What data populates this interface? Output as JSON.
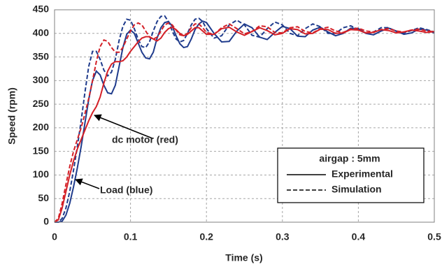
{
  "chart_data": {
    "type": "line",
    "xlabel": "Time  (s)",
    "ylabel": "Speed  (rpm)",
    "x": [
      0,
      0.005,
      0.01,
      0.015,
      0.02,
      0.025,
      0.03,
      0.035,
      0.04,
      0.045,
      0.05,
      0.055,
      0.06,
      0.065,
      0.07,
      0.075,
      0.08,
      0.085,
      0.09,
      0.095,
      0.1,
      0.105,
      0.11,
      0.115,
      0.12,
      0.125,
      0.13,
      0.135,
      0.14,
      0.145,
      0.15,
      0.155,
      0.16,
      0.165,
      0.17,
      0.175,
      0.18,
      0.185,
      0.19,
      0.195,
      0.2,
      0.21,
      0.22,
      0.23,
      0.24,
      0.25,
      0.26,
      0.27,
      0.28,
      0.29,
      0.3,
      0.31,
      0.32,
      0.33,
      0.34,
      0.35,
      0.36,
      0.37,
      0.38,
      0.39,
      0.4,
      0.41,
      0.42,
      0.43,
      0.44,
      0.45,
      0.46,
      0.47,
      0.48,
      0.49,
      0.5
    ],
    "series": [
      {
        "color": "#1f3b8c",
        "dash": "solid",
        "values": [
          0,
          0,
          2,
          15,
          40,
          75,
          115,
          160,
          210,
          260,
          300,
          320,
          312,
          290,
          274,
          272,
          290,
          330,
          370,
          398,
          407,
          400,
          380,
          360,
          348,
          346,
          360,
          390,
          412,
          423,
          425,
          415,
          395,
          378,
          370,
          372,
          388,
          408,
          420,
          426,
          423,
          400,
          382,
          383,
          405,
          420,
          412,
          392,
          387,
          402,
          415,
          410,
          394,
          393,
          407,
          413,
          403,
          395,
          400,
          411,
          410,
          400,
          397,
          405,
          411,
          405,
          398,
          401,
          409,
          407,
          401
        ]
      },
      {
        "color": "#1f3b8c",
        "dash": "dashed",
        "values": [
          0,
          0,
          8,
          30,
          65,
          110,
          160,
          215,
          275,
          330,
          362,
          362,
          345,
          322,
          310,
          318,
          345,
          385,
          415,
          430,
          428,
          410,
          388,
          372,
          370,
          382,
          405,
          425,
          436,
          437,
          425,
          405,
          388,
          382,
          385,
          400,
          418,
          430,
          432,
          425,
          410,
          390,
          395,
          418,
          428,
          418,
          396,
          392,
          410,
          424,
          418,
          400,
          395,
          410,
          420,
          414,
          400,
          400,
          412,
          416,
          408,
          400,
          403,
          412,
          412,
          404,
          401,
          406,
          412,
          408,
          403
        ]
      },
      {
        "color": "#d42027",
        "dash": "solid",
        "values": [
          0,
          5,
          30,
          65,
          100,
          130,
          155,
          175,
          195,
          215,
          232,
          245,
          265,
          295,
          320,
          335,
          340,
          340,
          342,
          350,
          362,
          372,
          382,
          390,
          393,
          393,
          388,
          384,
          390,
          402,
          410,
          413,
          408,
          400,
          395,
          398,
          405,
          412,
          412,
          405,
          398,
          398,
          410,
          413,
          403,
          396,
          404,
          412,
          406,
          397,
          400,
          410,
          408,
          399,
          400,
          409,
          408,
          400,
          401,
          408,
          407,
          401,
          402,
          408,
          406,
          401,
          403,
          407,
          405,
          402,
          404
        ]
      },
      {
        "color": "#d42027",
        "dash": "dashed",
        "values": [
          0,
          8,
          40,
          80,
          118,
          150,
          175,
          200,
          230,
          262,
          300,
          340,
          372,
          386,
          383,
          370,
          360,
          360,
          370,
          388,
          405,
          418,
          422,
          418,
          405,
          392,
          388,
          392,
          405,
          418,
          422,
          418,
          407,
          397,
          395,
          400,
          412,
          420,
          420,
          412,
          402,
          398,
          412,
          420,
          410,
          399,
          404,
          416,
          414,
          402,
          401,
          412,
          414,
          404,
          401,
          410,
          413,
          405,
          402,
          409,
          411,
          405,
          403,
          408,
          410,
          405,
          403,
          407,
          409,
          405,
          404
        ]
      }
    ],
    "xlim": [
      0,
      0.5
    ],
    "ylim": [
      0,
      450
    ],
    "xticks": [
      0,
      0.1,
      0.2,
      0.3,
      0.4,
      0.5
    ],
    "yticks": [
      0,
      50,
      100,
      150,
      200,
      250,
      300,
      350,
      400,
      450
    ],
    "grid": true,
    "annotations": [
      "dc motor (red)",
      "Load (blue)"
    ],
    "legend": {
      "title": "airgap : 5mm",
      "position": "lower right",
      "entries": [
        {
          "label": "Experimental",
          "dash": "solid"
        },
        {
          "label": "Simulation",
          "dash": "dashed"
        }
      ]
    }
  }
}
